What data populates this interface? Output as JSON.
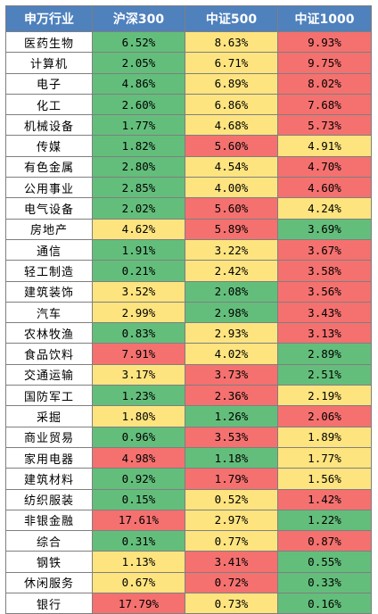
{
  "chart_data": {
    "type": "table",
    "colors": {
      "header_bg": "#4f81bd",
      "header_text": "#ffffff",
      "high": "#f4716f",
      "mid": "#fde47f",
      "low": "#63be7b",
      "border": "#7f7f7f"
    },
    "columns": [
      "申万行业",
      "沪深300",
      "中证500",
      "中证1000"
    ],
    "rows": [
      {
        "industry": "医药生物",
        "values": [
          "6.52%",
          "8.63%",
          "9.93%"
        ],
        "levels": [
          "low",
          "mid",
          "high"
        ]
      },
      {
        "industry": "计算机",
        "values": [
          "2.05%",
          "6.71%",
          "9.75%"
        ],
        "levels": [
          "low",
          "mid",
          "high"
        ]
      },
      {
        "industry": "电子",
        "values": [
          "4.86%",
          "6.89%",
          "8.02%"
        ],
        "levels": [
          "low",
          "mid",
          "high"
        ]
      },
      {
        "industry": "化工",
        "values": [
          "2.60%",
          "6.86%",
          "7.68%"
        ],
        "levels": [
          "low",
          "mid",
          "high"
        ]
      },
      {
        "industry": "机械设备",
        "values": [
          "1.77%",
          "4.68%",
          "5.73%"
        ],
        "levels": [
          "low",
          "mid",
          "high"
        ]
      },
      {
        "industry": "传媒",
        "values": [
          "1.82%",
          "5.60%",
          "4.91%"
        ],
        "levels": [
          "low",
          "high",
          "mid"
        ]
      },
      {
        "industry": "有色金属",
        "values": [
          "2.80%",
          "4.54%",
          "4.70%"
        ],
        "levels": [
          "low",
          "mid",
          "high"
        ]
      },
      {
        "industry": "公用事业",
        "values": [
          "2.85%",
          "4.00%",
          "4.60%"
        ],
        "levels": [
          "low",
          "mid",
          "high"
        ]
      },
      {
        "industry": "电气设备",
        "values": [
          "2.02%",
          "5.60%",
          "4.24%"
        ],
        "levels": [
          "low",
          "high",
          "mid"
        ]
      },
      {
        "industry": "房地产",
        "values": [
          "4.62%",
          "5.89%",
          "3.69%"
        ],
        "levels": [
          "mid",
          "high",
          "low"
        ]
      },
      {
        "industry": "通信",
        "values": [
          "1.91%",
          "3.22%",
          "3.67%"
        ],
        "levels": [
          "low",
          "mid",
          "high"
        ]
      },
      {
        "industry": "轻工制造",
        "values": [
          "0.21%",
          "2.42%",
          "3.58%"
        ],
        "levels": [
          "low",
          "mid",
          "high"
        ]
      },
      {
        "industry": "建筑装饰",
        "values": [
          "3.52%",
          "2.08%",
          "3.56%"
        ],
        "levels": [
          "mid",
          "low",
          "high"
        ]
      },
      {
        "industry": "汽车",
        "values": [
          "2.99%",
          "2.98%",
          "3.43%"
        ],
        "levels": [
          "mid",
          "low",
          "high"
        ]
      },
      {
        "industry": "农林牧渔",
        "values": [
          "0.83%",
          "2.93%",
          "3.13%"
        ],
        "levels": [
          "low",
          "mid",
          "high"
        ]
      },
      {
        "industry": "食品饮料",
        "values": [
          "7.91%",
          "4.02%",
          "2.89%"
        ],
        "levels": [
          "high",
          "mid",
          "low"
        ]
      },
      {
        "industry": "交通运输",
        "values": [
          "3.17%",
          "3.73%",
          "2.51%"
        ],
        "levels": [
          "mid",
          "high",
          "low"
        ]
      },
      {
        "industry": "国防军工",
        "values": [
          "1.23%",
          "2.36%",
          "2.19%"
        ],
        "levels": [
          "low",
          "high",
          "mid"
        ]
      },
      {
        "industry": "采掘",
        "values": [
          "1.80%",
          "1.26%",
          "2.06%"
        ],
        "levels": [
          "mid",
          "low",
          "high"
        ]
      },
      {
        "industry": "商业贸易",
        "values": [
          "0.96%",
          "3.53%",
          "1.89%"
        ],
        "levels": [
          "low",
          "high",
          "mid"
        ]
      },
      {
        "industry": "家用电器",
        "values": [
          "4.98%",
          "1.18%",
          "1.77%"
        ],
        "levels": [
          "high",
          "low",
          "mid"
        ]
      },
      {
        "industry": "建筑材料",
        "values": [
          "0.92%",
          "1.79%",
          "1.56%"
        ],
        "levels": [
          "low",
          "high",
          "mid"
        ]
      },
      {
        "industry": "纺织服装",
        "values": [
          "0.15%",
          "0.52%",
          "1.42%"
        ],
        "levels": [
          "low",
          "mid",
          "high"
        ]
      },
      {
        "industry": "非银金融",
        "values": [
          "17.61%",
          "2.97%",
          "1.22%"
        ],
        "levels": [
          "high",
          "mid",
          "low"
        ]
      },
      {
        "industry": "综合",
        "values": [
          "0.31%",
          "0.77%",
          "0.87%"
        ],
        "levels": [
          "low",
          "mid",
          "high"
        ]
      },
      {
        "industry": "钢铁",
        "values": [
          "1.13%",
          "3.41%",
          "0.55%"
        ],
        "levels": [
          "mid",
          "high",
          "low"
        ]
      },
      {
        "industry": "休闲服务",
        "values": [
          "0.67%",
          "0.72%",
          "0.33%"
        ],
        "levels": [
          "mid",
          "high",
          "low"
        ]
      },
      {
        "industry": "银行",
        "values": [
          "17.79%",
          "0.73%",
          "0.16%"
        ],
        "levels": [
          "high",
          "mid",
          "low"
        ]
      }
    ]
  }
}
